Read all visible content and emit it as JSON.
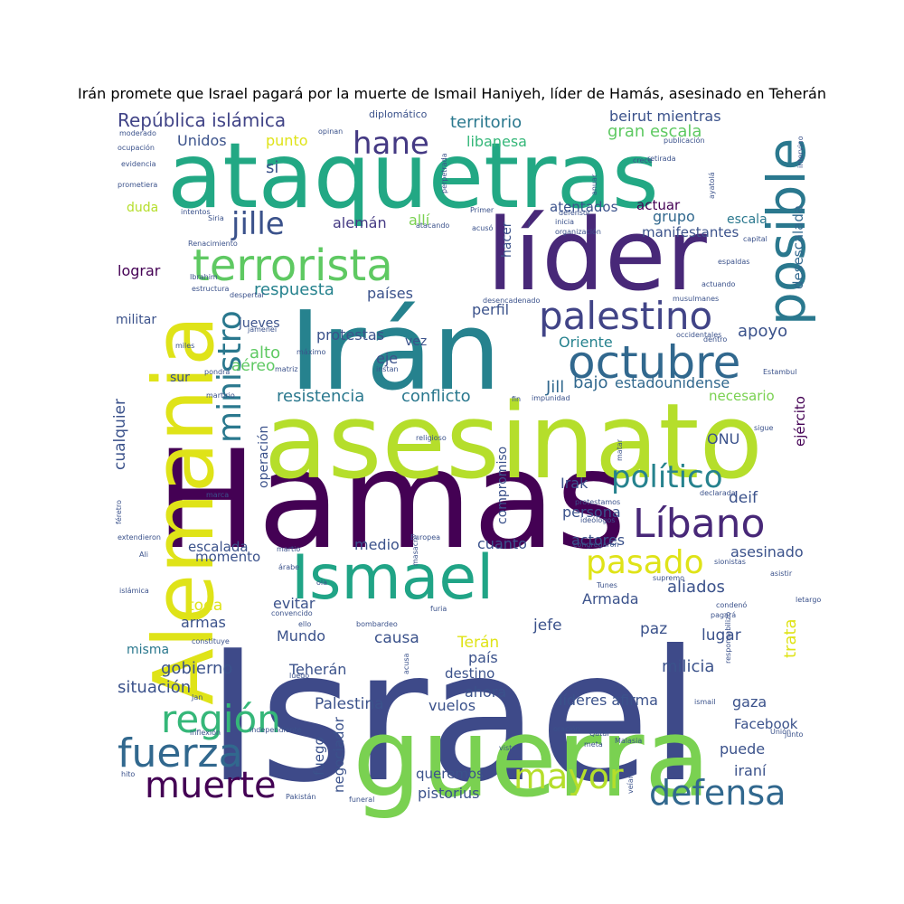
{
  "title": "Irán promete que Israel pagará por la muerte de Ismail Haniyeh, líder de Hamás, asesinado en Teherán",
  "words": [
    {
      "text": "Israel",
      "color": "#3e4a89"
    },
    {
      "text": "Hamas",
      "color": "#440154"
    },
    {
      "text": "guerra",
      "color": "#7ad151"
    },
    {
      "text": "asesinato",
      "color": "#b5de2b"
    },
    {
      "text": "ataquetras",
      "color": "#22a884"
    },
    {
      "text": "Alemania",
      "color": "#dfe318"
    },
    {
      "text": "Irán",
      "color": "#26828e"
    },
    {
      "text": "líder",
      "color": "#482878"
    },
    {
      "text": "Ismael",
      "color": "#20a486"
    },
    {
      "text": "terrorista",
      "color": "#5ec962"
    },
    {
      "text": "posible",
      "color": "#2a788e"
    },
    {
      "text": "octubre",
      "color": "#31688e"
    },
    {
      "text": "palestino",
      "color": "#414487"
    },
    {
      "text": "fuerza",
      "color": "#31688e"
    },
    {
      "text": "defensa",
      "color": "#31688e"
    },
    {
      "text": "región",
      "color": "#35b779"
    },
    {
      "text": "muerte",
      "color": "#440154"
    },
    {
      "text": "mayor",
      "color": "#b5de2b"
    },
    {
      "text": "Líbano",
      "color": "#482878"
    },
    {
      "text": "político",
      "color": "#26828e"
    },
    {
      "text": "pasado",
      "color": "#dfe318"
    },
    {
      "text": "ministro",
      "color": "#2a788e"
    },
    {
      "text": "hane",
      "color": "#443983"
    },
    {
      "text": "jille",
      "color": "#3b528b"
    },
    {
      "text": "República islámica",
      "color": "#414487"
    },
    {
      "text": "territorio",
      "color": "#2a788e"
    },
    {
      "text": "gran escala",
      "color": "#5ec962"
    },
    {
      "text": "Unidos",
      "color": "#3b528b"
    },
    {
      "text": "punto",
      "color": "#dfe318"
    },
    {
      "text": "libanesa",
      "color": "#35b779"
    },
    {
      "text": "beirut mientras",
      "color": "#3b528b"
    },
    {
      "text": "si",
      "color": "#3b528b"
    },
    {
      "text": "duda",
      "color": "#b5de2b"
    },
    {
      "text": "atentados",
      "color": "#3b528b"
    },
    {
      "text": "actuar",
      "color": "#440154"
    },
    {
      "text": "grupo",
      "color": "#31688e"
    },
    {
      "text": "escala",
      "color": "#2a788e"
    },
    {
      "text": "desescalada",
      "color": "#31688e"
    },
    {
      "text": "alemán",
      "color": "#443983"
    },
    {
      "text": "allí",
      "color": "#7ad151"
    },
    {
      "text": "hacer",
      "color": "#3b528b"
    },
    {
      "text": "manifestantes",
      "color": "#3b528b"
    },
    {
      "text": "lograr",
      "color": "#440154"
    },
    {
      "text": "respuesta",
      "color": "#26828e"
    },
    {
      "text": "países",
      "color": "#3b528b"
    },
    {
      "text": "perfil",
      "color": "#3b528b"
    },
    {
      "text": "apoyo",
      "color": "#3b528b"
    },
    {
      "text": "protestas",
      "color": "#3b528b"
    },
    {
      "text": "militar",
      "color": "#3b528b"
    },
    {
      "text": "jueves",
      "color": "#3b528b"
    },
    {
      "text": "vez",
      "color": "#3b528b"
    },
    {
      "text": "Oriente",
      "color": "#26828e"
    },
    {
      "text": "alto",
      "color": "#5ec962"
    },
    {
      "text": "aéreo",
      "color": "#5ec962"
    },
    {
      "text": "eje",
      "color": "#3b528b"
    },
    {
      "text": "Jill",
      "color": "#31688e"
    },
    {
      "text": "bajo",
      "color": "#31688e"
    },
    {
      "text": "estadounidense",
      "color": "#31688e"
    },
    {
      "text": "sur",
      "color": "#3b528b"
    },
    {
      "text": "resistencia",
      "color": "#2a788e"
    },
    {
      "text": "conflicto",
      "color": "#2a788e"
    },
    {
      "text": "necesario",
      "color": "#7ad151"
    },
    {
      "text": "ejército",
      "color": "#440154"
    },
    {
      "text": "cualquier",
      "color": "#3b528b"
    },
    {
      "text": "operación",
      "color": "#3b528b"
    },
    {
      "text": "compromiso",
      "color": "#3b528b"
    },
    {
      "text": "ONU",
      "color": "#3b528b"
    },
    {
      "text": "Irak",
      "color": "#3b528b"
    },
    {
      "text": "deif",
      "color": "#3b528b"
    },
    {
      "text": "persona",
      "color": "#3b528b"
    },
    {
      "text": "cuanto",
      "color": "#3b528b"
    },
    {
      "text": "actores",
      "color": "#3b528b"
    },
    {
      "text": "medio",
      "color": "#3b528b"
    },
    {
      "text": "escalada",
      "color": "#3b528b"
    },
    {
      "text": "momento",
      "color": "#3b528b"
    },
    {
      "text": "asesinado",
      "color": "#3b528b"
    },
    {
      "text": "aliados",
      "color": "#3b528b"
    },
    {
      "text": "toda",
      "color": "#dfe318"
    },
    {
      "text": "evitar",
      "color": "#3b528b"
    },
    {
      "text": "armas",
      "color": "#3b528b"
    },
    {
      "text": "Armada",
      "color": "#3b528b"
    },
    {
      "text": "misma",
      "color": "#2a788e"
    },
    {
      "text": "Mundo",
      "color": "#3b528b"
    },
    {
      "text": "causa",
      "color": "#3b528b"
    },
    {
      "text": "jefe",
      "color": "#3b528b"
    },
    {
      "text": "paz",
      "color": "#3b528b"
    },
    {
      "text": "lugar",
      "color": "#3b528b"
    },
    {
      "text": "trata",
      "color": "#dfe318"
    },
    {
      "text": "gobierno",
      "color": "#3b528b"
    },
    {
      "text": "Terán",
      "color": "#dfe318"
    },
    {
      "text": "país",
      "color": "#3b528b"
    },
    {
      "text": "milicia",
      "color": "#3b528b"
    },
    {
      "text": "situación",
      "color": "#3b528b"
    },
    {
      "text": "Teherán",
      "color": "#3b528b"
    },
    {
      "text": "destino",
      "color": "#3b528b"
    },
    {
      "text": "ahora",
      "color": "#3b528b"
    },
    {
      "text": "Palestina",
      "color": "#3b528b"
    },
    {
      "text": "vuelos",
      "color": "#3b528b"
    },
    {
      "text": "líderes afirma",
      "color": "#3b528b"
    },
    {
      "text": "gaza",
      "color": "#3b528b"
    },
    {
      "text": "Facebook",
      "color": "#3b528b"
    },
    {
      "text": "negociador",
      "color": "#3b528b"
    },
    {
      "text": "fuego",
      "color": "#3b528b"
    },
    {
      "text": "puede",
      "color": "#3b528b"
    },
    {
      "text": "iraní",
      "color": "#3b528b"
    },
    {
      "text": "queremos",
      "color": "#3b528b"
    },
    {
      "text": "pistorius",
      "color": "#3b528b"
    },
    {
      "text": "diplomático",
      "color": "#3b528b"
    },
    {
      "text": "opinan",
      "color": "#3b528b"
    },
    {
      "text": "moderado",
      "color": "#3b528b"
    },
    {
      "text": "ocupación",
      "color": "#3b528b"
    },
    {
      "text": "evidencia",
      "color": "#3b528b"
    },
    {
      "text": "crece",
      "color": "#3b528b"
    },
    {
      "text": "prometiera",
      "color": "#3b528b"
    },
    {
      "text": "intervino",
      "color": "#3b528b"
    },
    {
      "text": "publicación",
      "color": "#3b528b"
    },
    {
      "text": "retirada",
      "color": "#3b528b"
    },
    {
      "text": "perpetrada",
      "color": "#3b528b"
    },
    {
      "text": "anuar",
      "color": "#3b528b"
    },
    {
      "text": "ayatolá",
      "color": "#3b528b"
    },
    {
      "text": "intentos",
      "color": "#3b528b"
    },
    {
      "text": "Siria",
      "color": "#3b528b"
    },
    {
      "text": "atacando",
      "color": "#3b528b"
    },
    {
      "text": "Primer",
      "color": "#3b528b"
    },
    {
      "text": "J",
      "color": "#3b528b"
    },
    {
      "text": "defensor",
      "color": "#3b528b"
    },
    {
      "text": "inicia",
      "color": "#3b528b"
    },
    {
      "text": "organización",
      "color": "#3b528b"
    },
    {
      "text": "acusó",
      "color": "#3b528b"
    },
    {
      "text": "Renacimiento",
      "color": "#3b528b"
    },
    {
      "text": "capital",
      "color": "#3b528b"
    },
    {
      "text": "espaldas",
      "color": "#3b528b"
    },
    {
      "text": "Ibrahim",
      "color": "#3b528b"
    },
    {
      "text": "estructura",
      "color": "#3b528b"
    },
    {
      "text": "despertar",
      "color": "#3b528b"
    },
    {
      "text": "desencadenado",
      "color": "#3b528b"
    },
    {
      "text": "actuando",
      "color": "#3b528b"
    },
    {
      "text": "musulmanes",
      "color": "#3b528b"
    },
    {
      "text": "jamenei",
      "color": "#3b528b"
    },
    {
      "text": "miles",
      "color": "#3b528b"
    },
    {
      "text": "máximo",
      "color": "#3b528b"
    },
    {
      "text": "occidentales",
      "color": "#3b528b"
    },
    {
      "text": "dentro",
      "color": "#3b528b"
    },
    {
      "text": "pondrá",
      "color": "#3b528b"
    },
    {
      "text": "matriz",
      "color": "#3b528b"
    },
    {
      "text": "instan",
      "color": "#3b528b"
    },
    {
      "text": "Estambul",
      "color": "#3b528b"
    },
    {
      "text": "martirio",
      "color": "#3b528b"
    },
    {
      "text": "fin",
      "color": "#3b528b"
    },
    {
      "text": "impunidad",
      "color": "#3b528b"
    },
    {
      "text": "religioso",
      "color": "#3b528b"
    },
    {
      "text": "sigue",
      "color": "#3b528b"
    },
    {
      "text": "matar",
      "color": "#3b528b"
    },
    {
      "text": "marca",
      "color": "#3b528b"
    },
    {
      "text": "féretro",
      "color": "#3b528b"
    },
    {
      "text": "protestamos",
      "color": "#3b528b"
    },
    {
      "text": "declarada",
      "color": "#3b528b"
    },
    {
      "text": "ideólogos",
      "color": "#3b528b"
    },
    {
      "text": "extendieron",
      "color": "#3b528b"
    },
    {
      "text": "Europea",
      "color": "#3b528b"
    },
    {
      "text": "congregaron",
      "color": "#3b528b"
    },
    {
      "text": "Ali",
      "color": "#3b528b"
    },
    {
      "text": "martio",
      "color": "#3b528b"
    },
    {
      "text": "masacre",
      "color": "#3b528b"
    },
    {
      "text": "árabe",
      "color": "#3b528b"
    },
    {
      "text": "sionistas",
      "color": "#3b528b"
    },
    {
      "text": "supremo",
      "color": "#3b528b"
    },
    {
      "text": "asistir",
      "color": "#3b528b"
    },
    {
      "text": "islámica",
      "color": "#3b528b"
    },
    {
      "text": "ola",
      "color": "#3b528b"
    },
    {
      "text": "Tunes",
      "color": "#3b528b"
    },
    {
      "text": "letargo",
      "color": "#3b528b"
    },
    {
      "text": "furia",
      "color": "#3b528b"
    },
    {
      "text": "condenó",
      "color": "#3b528b"
    },
    {
      "text": "convencido",
      "color": "#3b528b"
    },
    {
      "text": "responsabilizó",
      "color": "#3b528b"
    },
    {
      "text": "pagará",
      "color": "#3b528b"
    },
    {
      "text": "ello",
      "color": "#3b528b"
    },
    {
      "text": "bombardeo",
      "color": "#3b528b"
    },
    {
      "text": "constituye",
      "color": "#3b528b"
    },
    {
      "text": "acusa",
      "color": "#3b528b"
    },
    {
      "text": "luego",
      "color": "#3b528b"
    },
    {
      "text": "Jan",
      "color": "#3b528b"
    },
    {
      "text": "ismail",
      "color": "#3b528b"
    },
    {
      "text": "inflexión",
      "color": "#3b528b"
    },
    {
      "text": "independiente",
      "color": "#3b528b"
    },
    {
      "text": "oración",
      "color": "#3b528b"
    },
    {
      "text": "Qatar",
      "color": "#3b528b"
    },
    {
      "text": "Unión",
      "color": "#3b528b"
    },
    {
      "text": "junto",
      "color": "#3b528b"
    },
    {
      "text": "visto",
      "color": "#3b528b"
    },
    {
      "text": "meta",
      "color": "#3b528b"
    },
    {
      "text": "Malasia",
      "color": "#3b528b"
    },
    {
      "text": "veían",
      "color": "#3b528b"
    },
    {
      "text": "hito",
      "color": "#3b528b"
    },
    {
      "text": "Pakistán",
      "color": "#3b528b"
    },
    {
      "text": "funeral",
      "color": "#3b528b"
    }
  ]
}
